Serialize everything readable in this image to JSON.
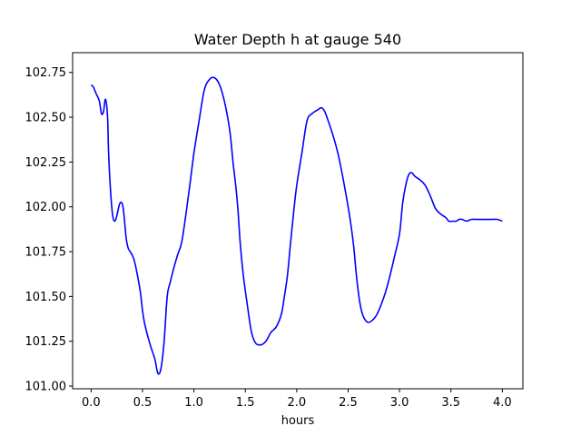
{
  "chart_data": {
    "type": "line",
    "title": "Water Depth h at gauge 540",
    "xlabel": "hours",
    "ylabel": "",
    "xlim": [
      -0.18,
      4.2
    ],
    "ylim": [
      100.985,
      102.86
    ],
    "x_ticks": [
      0.0,
      0.5,
      1.0,
      1.5,
      2.0,
      2.5,
      3.0,
      3.5,
      4.0
    ],
    "x_tick_labels": [
      "0.0",
      "0.5",
      "1.0",
      "1.5",
      "2.0",
      "2.5",
      "3.0",
      "3.5",
      "4.0"
    ],
    "y_ticks": [
      101.0,
      101.25,
      101.5,
      101.75,
      102.0,
      102.25,
      102.5,
      102.75
    ],
    "y_tick_labels": [
      "101.00",
      "101.25",
      "101.50",
      "101.75",
      "102.00",
      "102.25",
      "102.50",
      "102.75"
    ],
    "grid": false,
    "series": [
      {
        "color": "#0000ff",
        "x": [
          0.0,
          0.02,
          0.05,
          0.08,
          0.1,
          0.12,
          0.14,
          0.16,
          0.17,
          0.19,
          0.21,
          0.23,
          0.25,
          0.28,
          0.31,
          0.34,
          0.36,
          0.38,
          0.4,
          0.42,
          0.45,
          0.48,
          0.5,
          0.52,
          0.55,
          0.58,
          0.62,
          0.65,
          0.68,
          0.71,
          0.74,
          0.77,
          0.8,
          0.84,
          0.88,
          0.92,
          0.96,
          1.0,
          1.05,
          1.1,
          1.15,
          1.2,
          1.25,
          1.3,
          1.35,
          1.38,
          1.41,
          1.43,
          1.45,
          1.48,
          1.52,
          1.56,
          1.6,
          1.65,
          1.7,
          1.75,
          1.8,
          1.85,
          1.88,
          1.91,
          1.94,
          1.97,
          2.0,
          2.05,
          2.1,
          2.15,
          2.2,
          2.25,
          2.3,
          2.4,
          2.5,
          2.55,
          2.58,
          2.61,
          2.64,
          2.68,
          2.72,
          2.78,
          2.85,
          2.9,
          2.95,
          3.0,
          3.03,
          3.06,
          3.09,
          3.12,
          3.15,
          3.2,
          3.25,
          3.3,
          3.35,
          3.4,
          3.45,
          3.48,
          3.52,
          3.55,
          3.58,
          3.61,
          3.65,
          3.7,
          3.75,
          3.8,
          3.85,
          3.9,
          3.95,
          4.0
        ],
        "values": [
          102.68,
          102.67,
          102.63,
          102.59,
          102.52,
          102.53,
          102.6,
          102.5,
          102.3,
          102.08,
          101.95,
          101.92,
          101.95,
          102.02,
          102.0,
          101.83,
          101.77,
          101.75,
          101.73,
          101.7,
          101.62,
          101.52,
          101.42,
          101.35,
          101.28,
          101.22,
          101.15,
          101.07,
          101.1,
          101.25,
          101.5,
          101.58,
          101.65,
          101.73,
          101.8,
          101.95,
          102.12,
          102.3,
          102.48,
          102.65,
          102.71,
          102.72,
          102.68,
          102.58,
          102.42,
          102.25,
          102.1,
          101.97,
          101.8,
          101.62,
          101.45,
          101.3,
          101.24,
          101.23,
          101.25,
          101.3,
          101.33,
          101.4,
          101.5,
          101.62,
          101.8,
          101.97,
          102.12,
          102.3,
          102.48,
          102.52,
          102.54,
          102.55,
          102.49,
          102.3,
          102.0,
          101.8,
          101.62,
          101.48,
          101.4,
          101.36,
          101.36,
          101.4,
          101.5,
          101.6,
          101.72,
          101.85,
          102.02,
          102.12,
          102.18,
          102.19,
          102.17,
          102.15,
          102.12,
          102.06,
          101.99,
          101.96,
          101.94,
          101.92,
          101.92,
          101.92,
          101.93,
          101.93,
          101.92,
          101.93,
          101.93,
          101.93,
          101.93,
          101.93,
          101.93,
          101.92
        ]
      }
    ]
  }
}
